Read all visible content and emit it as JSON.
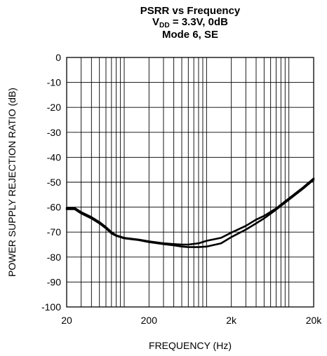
{
  "chart_data": {
    "type": "line",
    "title": [
      "PSRR vs Frequency",
      "Mode 6, SE"
    ],
    "title_vdd": {
      "prefix": "V",
      "subscript": "DD",
      "suffix": " = 3.3V, 0dB"
    },
    "xlabel": "FREQUENCY (Hz)",
    "ylabel": "POWER SUPPLY REJECTION RATIO (dB)",
    "x_scale": "log",
    "xlim": [
      20,
      20000
    ],
    "ylim": [
      -100,
      0
    ],
    "grid": true,
    "legend": "none",
    "x_ticks": [
      {
        "value": 20,
        "label": "20"
      },
      {
        "value": 200,
        "label": "200"
      },
      {
        "value": 2000,
        "label": "2k"
      },
      {
        "value": 20000,
        "label": "20k"
      }
    ],
    "y_ticks": [
      {
        "value": 0,
        "label": "0"
      },
      {
        "value": -10,
        "label": "-10"
      },
      {
        "value": -20,
        "label": "-20"
      },
      {
        "value": -30,
        "label": "-30"
      },
      {
        "value": -40,
        "label": "-40"
      },
      {
        "value": -50,
        "label": "-50"
      },
      {
        "value": -60,
        "label": "-60"
      },
      {
        "value": -70,
        "label": "-70"
      },
      {
        "value": -80,
        "label": "-80"
      },
      {
        "value": -90,
        "label": "-90"
      },
      {
        "value": -100,
        "label": "-100"
      }
    ],
    "series": [
      {
        "color": "#000000",
        "x": [
          20,
          25,
          30,
          40,
          50,
          60,
          70,
          80,
          100,
          150,
          200,
          300,
          400,
          500,
          600,
          800,
          1000,
          1500,
          2000,
          3000,
          4000,
          5000,
          7000,
          10000,
          15000,
          20000
        ],
        "y": [
          -60.8,
          -60.8,
          -62.5,
          -64.5,
          -66.5,
          -68.5,
          -70.5,
          -71.5,
          -72.5,
          -73.2,
          -74,
          -74.8,
          -75.3,
          -75.8,
          -76,
          -76,
          -75.8,
          -74.5,
          -72,
          -69,
          -66.5,
          -64.5,
          -61,
          -57,
          -52.5,
          -49
        ]
      },
      {
        "color": "#000000",
        "x": [
          20,
          25,
          30,
          40,
          50,
          60,
          70,
          80,
          100,
          150,
          200,
          300,
          400,
          500,
          600,
          800,
          1000,
          1500,
          2000,
          3000,
          4000,
          5000,
          7000,
          10000,
          15000,
          20000
        ],
        "y": [
          -60.3,
          -60.3,
          -62,
          -64,
          -66,
          -68,
          -70,
          -71.3,
          -72.3,
          -73,
          -73.7,
          -74.5,
          -74.8,
          -75,
          -75,
          -74.5,
          -73.5,
          -72.3,
          -70.2,
          -67.5,
          -65,
          -63.5,
          -60.5,
          -56.5,
          -52,
          -48.5
        ]
      }
    ]
  }
}
